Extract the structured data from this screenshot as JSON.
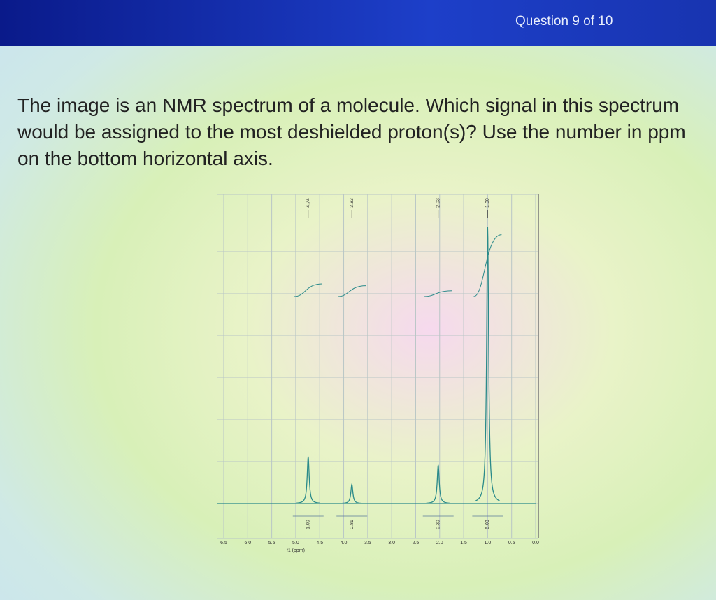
{
  "header": {
    "progress": "Question 9 of 10"
  },
  "question": {
    "text": "The image is an NMR spectrum of a molecule. Which signal in this spectrum would be assigned to the most deshielded proton(s)? Use the number in ppm on the bottom horizontal axis."
  },
  "chart_data": {
    "type": "spectrum",
    "xlabel": "f1 (ppm)",
    "xlim": [
      6.5,
      0
    ],
    "xticks": [
      6.5,
      {
        "value": 6,
        "label": "6.0"
      },
      5.5,
      {
        "value": 5,
        "label": "5.0"
      },
      4.5,
      {
        "value": 4,
        "label": "4.0"
      },
      3.5,
      {
        "value": 3,
        "label": "3.0"
      },
      2.5,
      {
        "value": 2,
        "label": "2.0"
      },
      1.5,
      {
        "value": 1,
        "label": "1.0"
      },
      0.5,
      {
        "value": 0,
        "label": "0.0"
      }
    ],
    "grid": true,
    "color": "#2a8a8a",
    "peaks": {
      "x": [
        4.74,
        3.83,
        2.03,
        1.0
      ],
      "x_labels": [
        "4.74",
        "3.83",
        "2.03",
        "1.00"
      ],
      "intensity": [
        0.17,
        0.07,
        0.14,
        1.0
      ],
      "integrals": [
        1.0,
        0.81,
        0.3,
        6.03
      ],
      "integral_labels": [
        "1.00",
        "0.81",
        "0.30",
        "6.03"
      ]
    }
  }
}
